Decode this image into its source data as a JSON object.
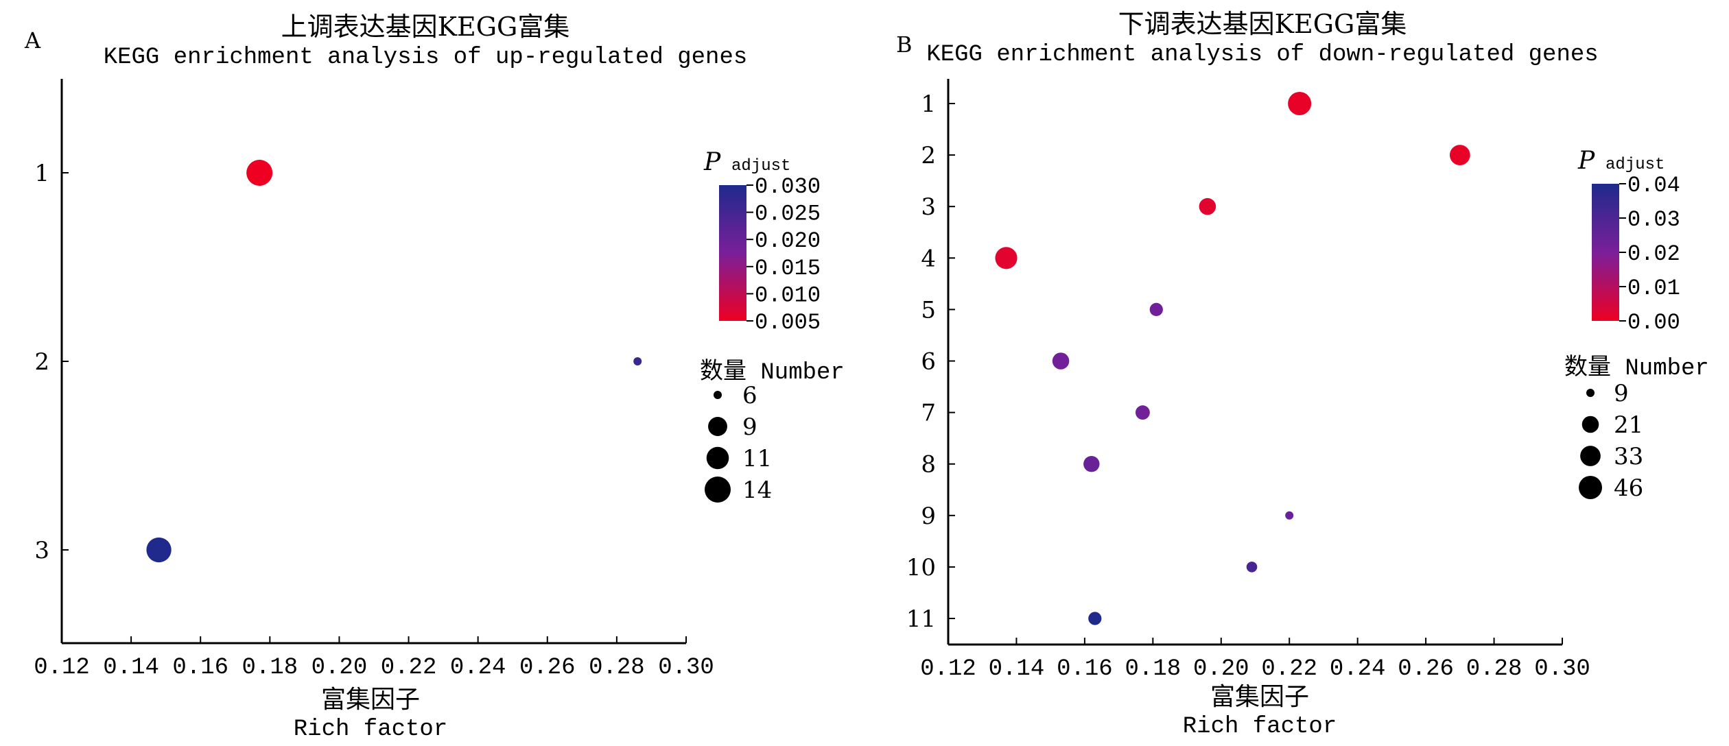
{
  "chart_data": [
    {
      "panel_label": "A",
      "type": "scatter",
      "title": "上调表达基因KEGG富集",
      "subtitle": "KEGG enrichment analysis of up-regulated genes",
      "xlabel": "富集因子",
      "xlabel_en": "Rich factor",
      "ylabel": "",
      "xlim": [
        0.12,
        0.3
      ],
      "x_ticks": [
        "0.12",
        "0.14",
        "0.16",
        "0.18",
        "0.20",
        "0.22",
        "0.24",
        "0.26",
        "0.28",
        "0.30"
      ],
      "y_ticks": [
        "1",
        "2",
        "3"
      ],
      "points": [
        {
          "y": 1,
          "x": 0.177,
          "count": 14,
          "p_adjust": 0.005
        },
        {
          "y": 2,
          "x": 0.286,
          "count": 6,
          "p_adjust": 0.026
        },
        {
          "y": 3,
          "x": 0.148,
          "count": 13,
          "p_adjust": 0.03
        }
      ],
      "color_legend": {
        "title_main": "P",
        "title_sub": "adjust",
        "min": 0.005,
        "max": 0.03,
        "ticks": [
          "0.030",
          "0.025",
          "0.020",
          "0.015",
          "0.010",
          "0.005"
        ]
      },
      "size_legend": {
        "title": "数量 Number",
        "entries": [
          "6",
          "9",
          "11",
          "14"
        ],
        "min": 6,
        "max": 14
      },
      "colors": {
        "low": "#ee0022",
        "mid": "#7a1f9a",
        "high": "#1f2a8c"
      }
    },
    {
      "panel_label": "B",
      "type": "scatter",
      "title": "下调表达基因KEGG富集",
      "subtitle": "KEGG enrichment analysis of down-regulated genes",
      "xlabel": "富集因子",
      "xlabel_en": "Rich factor",
      "ylabel": "",
      "xlim": [
        0.12,
        0.3
      ],
      "x_ticks": [
        "0.12",
        "0.14",
        "0.16",
        "0.18",
        "0.20",
        "0.22",
        "0.24",
        "0.26",
        "0.28",
        "0.30"
      ],
      "y_ticks": [
        "1",
        "2",
        "3",
        "4",
        "5",
        "6",
        "7",
        "8",
        "9",
        "10",
        "11"
      ],
      "points": [
        {
          "y": 1,
          "x": 0.223,
          "count": 46,
          "p_adjust": 0.001
        },
        {
          "y": 2,
          "x": 0.27,
          "count": 33,
          "p_adjust": 0.001
        },
        {
          "y": 3,
          "x": 0.196,
          "count": 21,
          "p_adjust": 0.002
        },
        {
          "y": 4,
          "x": 0.137,
          "count": 40,
          "p_adjust": 0.002
        },
        {
          "y": 5,
          "x": 0.181,
          "count": 13,
          "p_adjust": 0.022
        },
        {
          "y": 6,
          "x": 0.153,
          "count": 21,
          "p_adjust": 0.022
        },
        {
          "y": 7,
          "x": 0.177,
          "count": 15,
          "p_adjust": 0.022
        },
        {
          "y": 8,
          "x": 0.162,
          "count": 19,
          "p_adjust": 0.024
        },
        {
          "y": 9,
          "x": 0.22,
          "count": 9,
          "p_adjust": 0.024
        },
        {
          "y": 10,
          "x": 0.209,
          "count": 10,
          "p_adjust": 0.031
        },
        {
          "y": 11,
          "x": 0.163,
          "count": 13,
          "p_adjust": 0.04
        }
      ],
      "color_legend": {
        "title_main": "P",
        "title_sub": "adjust",
        "min": 0.0,
        "max": 0.04,
        "ticks": [
          "0.04",
          "0.03",
          "0.02",
          "0.01",
          "0.00"
        ]
      },
      "size_legend": {
        "title": "数量 Number",
        "entries": [
          "9",
          "21",
          "33",
          "46"
        ],
        "min": 9,
        "max": 46
      },
      "colors": {
        "low": "#ee0022",
        "mid": "#7a1f9a",
        "high": "#1f2a8c"
      }
    }
  ]
}
